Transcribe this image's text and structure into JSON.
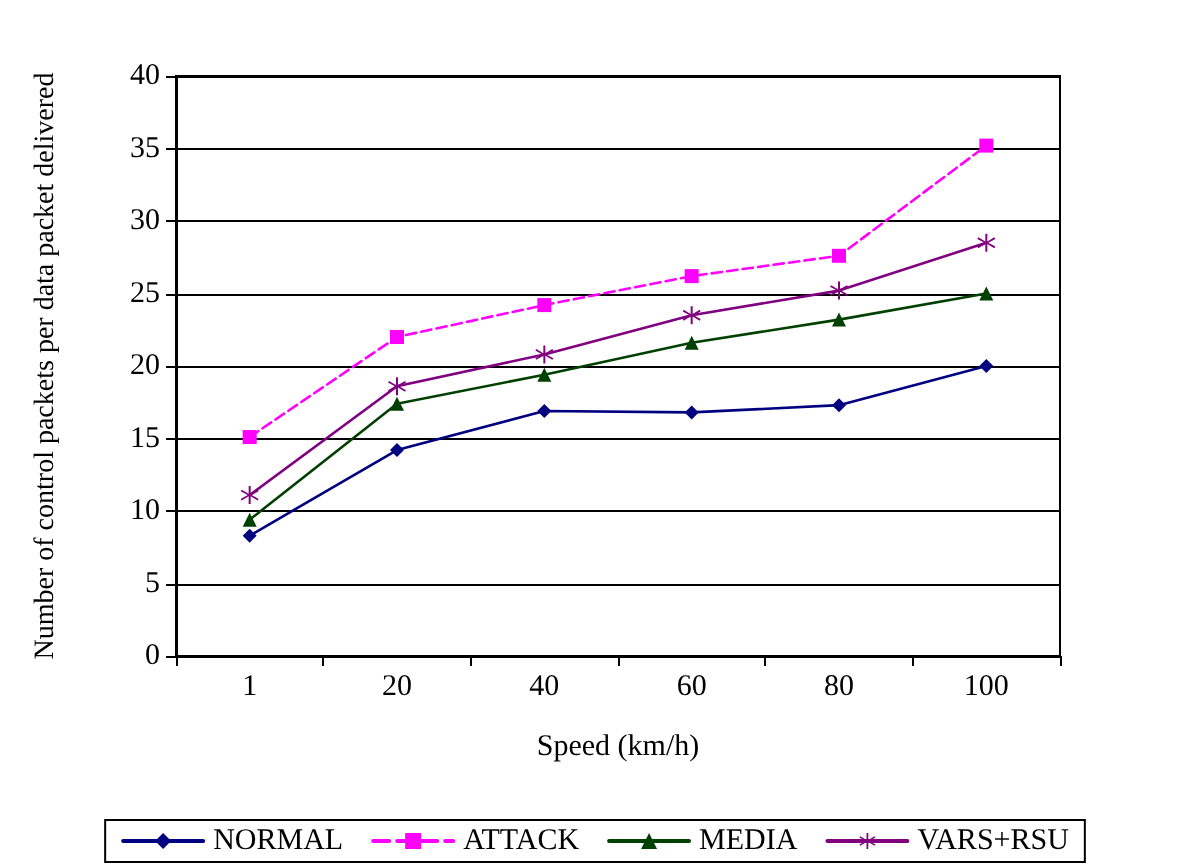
{
  "chart_data": {
    "type": "line",
    "xlabel": "Speed (km/h)",
    "ylabel": "Number of control packets per data packet delivered",
    "categories": [
      "1",
      "20",
      "40",
      "60",
      "80",
      "100"
    ],
    "series": [
      {
        "name": "NORMAL",
        "color": "#000080",
        "marker": "diamond",
        "line_style": "solid",
        "values": [
          8.3,
          14.2,
          16.9,
          16.8,
          17.3,
          20
        ]
      },
      {
        "name": "ATTACK",
        "color": "#ff00ff",
        "marker": "square",
        "line_style": "dashed",
        "values": [
          15.1,
          22,
          24.2,
          26.2,
          27.6,
          35.2
        ]
      },
      {
        "name": "MEDIA",
        "color": "#004000",
        "marker": "triangle",
        "line_style": "solid",
        "values": [
          9.4,
          17.4,
          19.4,
          21.6,
          23.2,
          25
        ]
      },
      {
        "name": "VARS+RSU",
        "color": "#800080",
        "marker": "cross",
        "line_style": "solid",
        "values": [
          11.1,
          18.6,
          20.8,
          23.5,
          25.2,
          28.5
        ]
      }
    ],
    "ylim": [
      0,
      40
    ],
    "yticks": [
      0,
      5,
      10,
      15,
      20,
      25,
      30,
      35,
      40
    ],
    "grid": "y",
    "legend": "bottom"
  }
}
